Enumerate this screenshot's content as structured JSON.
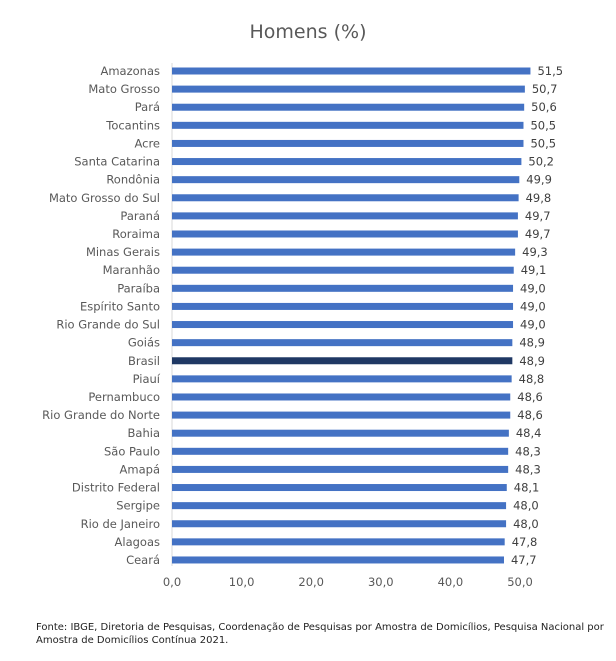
{
  "colors": {
    "bar": "#4472C4",
    "highlight": "#1F3864"
  },
  "chart_data": {
    "type": "bar",
    "orientation": "horizontal",
    "title": "Homens (%)",
    "xlabel": "",
    "ylabel": "",
    "xlim": [
      0,
      50
    ],
    "ticks": [
      "0,0",
      "10,0",
      "20,0",
      "30,0",
      "40,0",
      "50,0"
    ],
    "grid": false,
    "highlight": "Brasil",
    "categories": [
      "Amazonas",
      "Mato Grosso",
      "Pará",
      "Tocantins",
      "Acre",
      "Santa Catarina",
      "Rondônia",
      "Mato Grosso do Sul",
      "Paraná",
      "Roraima",
      "Minas Gerais",
      "Maranhão",
      "Paraíba",
      "Espírito Santo",
      "Rio Grande do Sul",
      "Goiás",
      "Brasil",
      "Piauí",
      "Pernambuco",
      "Rio Grande do Norte",
      "Bahia",
      "São Paulo",
      "Amapá",
      "Distrito Federal",
      "Sergipe",
      "Rio de Janeiro",
      "Alagoas",
      "Ceará"
    ],
    "values": [
      51.5,
      50.7,
      50.6,
      50.5,
      50.5,
      50.2,
      49.9,
      49.8,
      49.7,
      49.7,
      49.3,
      49.1,
      49.0,
      49.0,
      49.0,
      48.9,
      48.9,
      48.8,
      48.6,
      48.6,
      48.4,
      48.3,
      48.3,
      48.1,
      48.0,
      48.0,
      47.8,
      47.7
    ],
    "labels": [
      "51,5",
      "50,7",
      "50,6",
      "50,5",
      "50,5",
      "50,2",
      "49,9",
      "49,8",
      "49,7",
      "49,7",
      "49,3",
      "49,1",
      "49,0",
      "49,0",
      "49,0",
      "48,9",
      "48,9",
      "48,8",
      "48,6",
      "48,6",
      "48,4",
      "48,3",
      "48,3",
      "48,1",
      "48,0",
      "48,0",
      "47,8",
      "47,7"
    ]
  },
  "footnote": "Fonte: IBGE, Diretoria de Pesquisas, Coordenação de Pesquisas por Amostra de Domicílios, Pesquisa Nacional por Amostra de Domicílios Contínua 2021."
}
